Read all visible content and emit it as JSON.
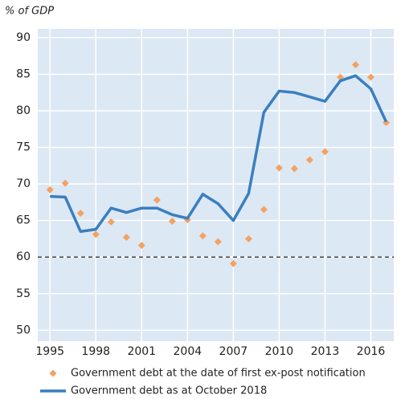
{
  "chart_data": {
    "type": "line",
    "unit_label": "% of GDP",
    "x": [
      1995,
      1996,
      1997,
      1998,
      1999,
      2000,
      2001,
      2002,
      2003,
      2004,
      2005,
      2006,
      2007,
      2008,
      2009,
      2010,
      2011,
      2012,
      2013,
      2014,
      2015,
      2016,
      2017
    ],
    "series": [
      {
        "name": "Government debt at the date of first ex-post notification",
        "type": "scatter",
        "color": "#f4a261",
        "values": [
          69.2,
          70.1,
          66.0,
          63.1,
          64.8,
          62.7,
          61.6,
          67.8,
          64.9,
          65.1,
          62.9,
          62.1,
          59.1,
          62.5,
          66.5,
          72.2,
          72.1,
          73.3,
          74.4,
          84.6,
          86.3,
          84.6,
          78.4
        ]
      },
      {
        "name": "Government debt as at October 2018",
        "type": "line",
        "color": "#3a7fc0",
        "values": [
          68.3,
          68.2,
          63.5,
          63.8,
          66.7,
          66.1,
          66.7,
          66.7,
          65.8,
          65.3,
          68.6,
          67.3,
          65.0,
          68.7,
          79.8,
          82.7,
          82.5,
          81.9,
          81.3,
          84.1,
          84.8,
          83.0,
          78.5
        ]
      }
    ],
    "reference_line": 60,
    "xlim": [
      1994.2,
      2017.5
    ],
    "xticks": [
      1995,
      1998,
      2001,
      2004,
      2007,
      2010,
      2013,
      2016
    ],
    "ylim": [
      48.5,
      91.2
    ],
    "yticks": [
      50,
      55,
      60,
      65,
      70,
      75,
      80,
      85,
      90
    ],
    "grid": true,
    "background": "#dce8f4"
  }
}
